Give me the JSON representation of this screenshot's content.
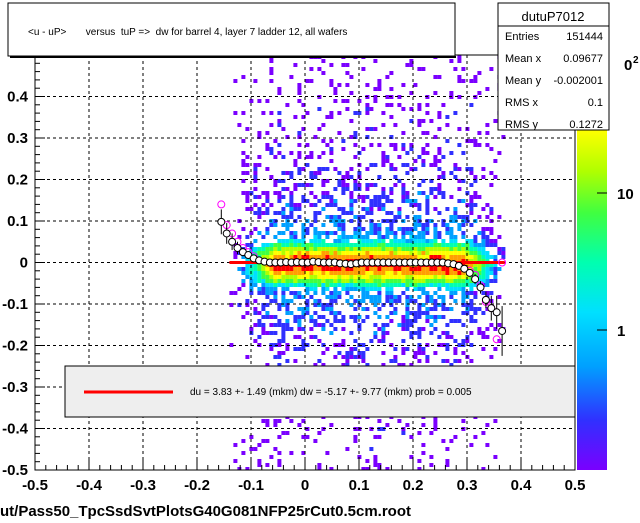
{
  "title": "<u - uP>       versus  tuP =>  dw for barrel 4, layer 7 ladder 12, all wafers",
  "footer": "ut/Pass50_TpcSsdSvtPlotsG40G081NFP25rCut0.5cm.root",
  "stats": {
    "name": "dutuP7012",
    "rows": [
      {
        "label": "Entries",
        "value": "151444"
      },
      {
        "label": "Mean x",
        "value": "0.09677"
      },
      {
        "label": "Mean y",
        "value": "-0.002001"
      },
      {
        "label": "RMS x",
        "value": "0.1"
      },
      {
        "label": "RMS y",
        "value": "0.1272"
      }
    ]
  },
  "fit_text": "du =    3.83 +-  1.49 (mkm) dw =   -5.17 +-  9.77 (mkm) prob = 0.005",
  "colors": {
    "fit_line": "#ff0000",
    "profile_black": "#000000",
    "profile_magenta": "#ff00ff"
  },
  "chart_data": {
    "type": "heatmap",
    "xlim": [
      -0.5,
      0.5
    ],
    "ylim": [
      -0.5,
      0.5
    ],
    "x_ticks": [
      "-0.5",
      "-0.4",
      "-0.3",
      "-0.2",
      "-0.1",
      "0",
      "0.1",
      "0.2",
      "0.3",
      "0.4",
      "0.5"
    ],
    "y_ticks": [
      "-0.5",
      "-0.4",
      "-0.3",
      "-0.2",
      "-0.1",
      "0",
      "0.1",
      "0.2",
      "0.3",
      "0.4"
    ],
    "z_ticks": [
      "1",
      "10"
    ],
    "z_scale": "log",
    "grid": true,
    "fit_line": {
      "x": [
        -0.14,
        0.37
      ],
      "y": [
        0.0,
        0.0
      ]
    },
    "profile": [
      {
        "x": -0.155,
        "y": 0.098,
        "err": 0.03
      },
      {
        "x": -0.145,
        "y": 0.07,
        "err": 0.025
      },
      {
        "x": -0.135,
        "y": 0.05,
        "err": 0.02
      },
      {
        "x": -0.125,
        "y": 0.035,
        "err": 0.015
      },
      {
        "x": -0.115,
        "y": 0.025,
        "err": 0.01
      },
      {
        "x": -0.105,
        "y": 0.018,
        "err": 0.008
      },
      {
        "x": -0.095,
        "y": 0.01,
        "err": 0.006
      },
      {
        "x": -0.085,
        "y": 0.005,
        "err": 0.005
      },
      {
        "x": -0.075,
        "y": 0.002,
        "err": 0.004
      },
      {
        "x": -0.065,
        "y": 0.0,
        "err": 0.004
      },
      {
        "x": -0.055,
        "y": 0.0,
        "err": 0.003
      },
      {
        "x": -0.045,
        "y": 0.0,
        "err": 0.003
      },
      {
        "x": -0.035,
        "y": 0.001,
        "err": 0.003
      },
      {
        "x": -0.025,
        "y": 0.0,
        "err": 0.003
      },
      {
        "x": -0.015,
        "y": 0.001,
        "err": 0.003
      },
      {
        "x": -0.005,
        "y": 0.0,
        "err": 0.003
      },
      {
        "x": 0.005,
        "y": 0.0,
        "err": 0.003
      },
      {
        "x": 0.015,
        "y": 0.002,
        "err": 0.003
      },
      {
        "x": 0.025,
        "y": 0.001,
        "err": 0.003
      },
      {
        "x": 0.035,
        "y": 0.0,
        "err": 0.003
      },
      {
        "x": 0.045,
        "y": 0.0,
        "err": 0.003
      },
      {
        "x": 0.055,
        "y": 0.0,
        "err": 0.003
      },
      {
        "x": 0.065,
        "y": -0.002,
        "err": 0.003
      },
      {
        "x": 0.075,
        "y": -0.003,
        "err": 0.003
      },
      {
        "x": 0.085,
        "y": -0.004,
        "err": 0.003
      },
      {
        "x": 0.095,
        "y": -0.002,
        "err": 0.003
      },
      {
        "x": 0.105,
        "y": 0.0,
        "err": 0.003
      },
      {
        "x": 0.115,
        "y": 0.0,
        "err": 0.003
      },
      {
        "x": 0.125,
        "y": 0.0,
        "err": 0.003
      },
      {
        "x": 0.135,
        "y": 0.0,
        "err": 0.003
      },
      {
        "x": 0.145,
        "y": 0.0,
        "err": 0.003
      },
      {
        "x": 0.155,
        "y": 0.0,
        "err": 0.003
      },
      {
        "x": 0.165,
        "y": 0.0,
        "err": 0.003
      },
      {
        "x": 0.175,
        "y": 0.0,
        "err": 0.003
      },
      {
        "x": 0.185,
        "y": 0.0,
        "err": 0.003
      },
      {
        "x": 0.195,
        "y": 0.0,
        "err": 0.003
      },
      {
        "x": 0.205,
        "y": 0.0,
        "err": 0.003
      },
      {
        "x": 0.215,
        "y": 0.0,
        "err": 0.003
      },
      {
        "x": 0.225,
        "y": 0.0,
        "err": 0.003
      },
      {
        "x": 0.235,
        "y": 0.0,
        "err": 0.003
      },
      {
        "x": 0.245,
        "y": 0.0,
        "err": 0.003
      },
      {
        "x": 0.255,
        "y": 0.0,
        "err": 0.003
      },
      {
        "x": 0.265,
        "y": -0.002,
        "err": 0.004
      },
      {
        "x": 0.275,
        "y": -0.004,
        "err": 0.004
      },
      {
        "x": 0.285,
        "y": -0.008,
        "err": 0.005
      },
      {
        "x": 0.295,
        "y": -0.015,
        "err": 0.006
      },
      {
        "x": 0.305,
        "y": -0.025,
        "err": 0.008
      },
      {
        "x": 0.315,
        "y": -0.04,
        "err": 0.012
      },
      {
        "x": 0.325,
        "y": -0.06,
        "err": 0.015
      },
      {
        "x": 0.335,
        "y": -0.09,
        "err": 0.02
      },
      {
        "x": 0.345,
        "y": -0.11,
        "err": 0.03
      },
      {
        "x": 0.355,
        "y": -0.12,
        "err": 0.04
      },
      {
        "x": 0.365,
        "y": -0.165,
        "err": 0.06
      }
    ],
    "profile_alt": [
      {
        "x": -0.155,
        "y": 0.14
      },
      {
        "x": -0.145,
        "y": 0.09
      },
      {
        "x": -0.135,
        "y": 0.07
      },
      {
        "x": -0.125,
        "y": 0.05
      },
      {
        "x": -0.115,
        "y": 0.035
      },
      {
        "x": -0.105,
        "y": 0.025
      },
      {
        "x": -0.095,
        "y": 0.015
      },
      {
        "x": 0.305,
        "y": -0.02
      },
      {
        "x": 0.315,
        "y": -0.03
      },
      {
        "x": 0.325,
        "y": -0.055
      },
      {
        "x": 0.335,
        "y": -0.095
      },
      {
        "x": 0.345,
        "y": -0.11
      },
      {
        "x": 0.355,
        "y": -0.185
      },
      {
        "x": 0.365,
        "y": 0.0
      }
    ]
  }
}
